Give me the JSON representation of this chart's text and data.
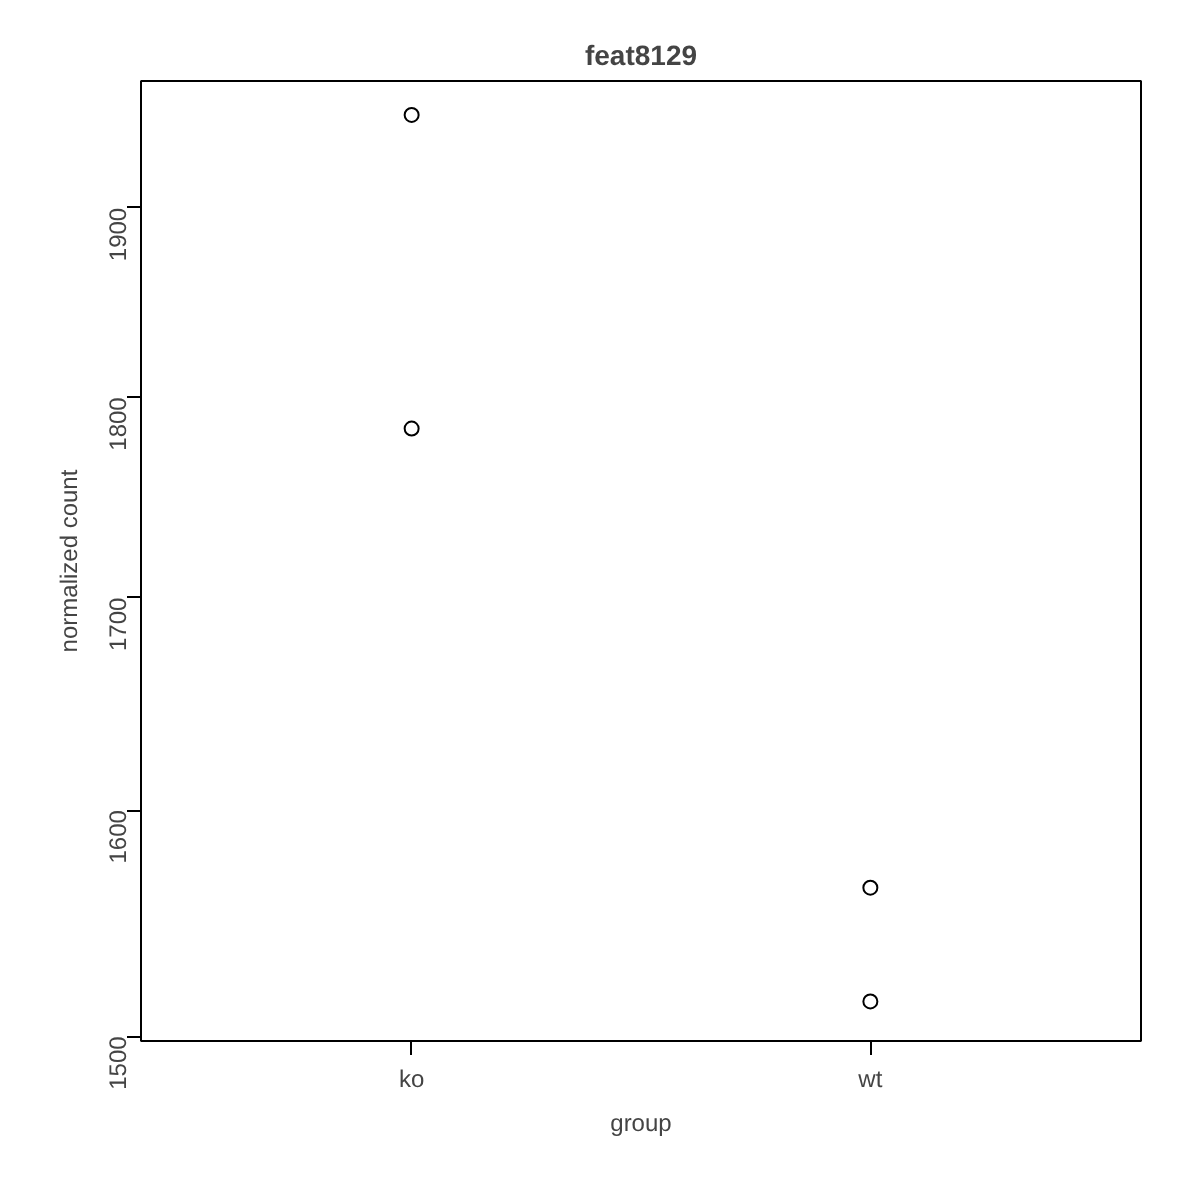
{
  "chart_data": {
    "type": "scatter",
    "title": "feat8129",
    "xlabel": "group",
    "ylabel": "normalized count",
    "categories": [
      "ko",
      "wt"
    ],
    "series": [
      {
        "x": [
          "ko",
          "ko",
          "wt",
          "wt"
        ],
        "values": [
          1951,
          1784,
          1565,
          1515
        ],
        "color": "#000000"
      }
    ],
    "log": "y",
    "ylim": [
      1498,
      1970
    ],
    "yticks": [
      1500,
      1600,
      1700,
      1800,
      1900
    ],
    "marker": "circle"
  }
}
